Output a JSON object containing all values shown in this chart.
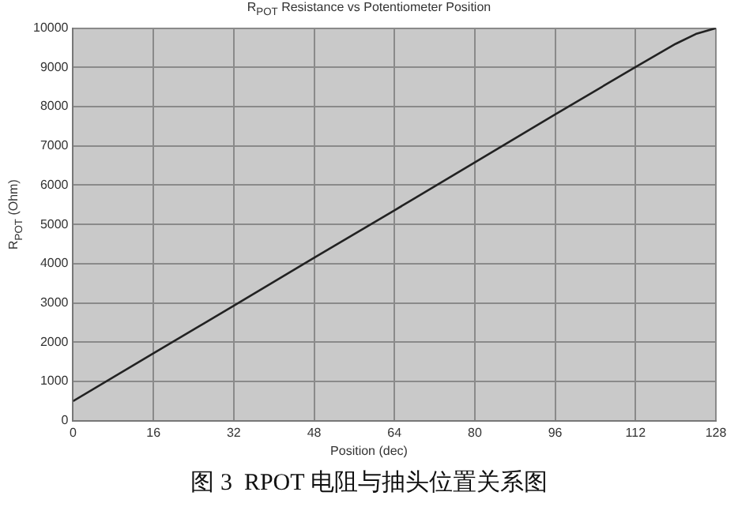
{
  "chart_data": {
    "type": "line",
    "title": "R$_{POT}$ Resistance vs Potentiometer Position",
    "xlabel": "Position (dec)",
    "ylabel": "R$_{POT}$ (Ohm)",
    "annotations": [
      "图 3  RPOT 电阻与抽头位置关系图"
    ],
    "x": [
      0,
      16,
      32,
      48,
      64,
      80,
      96,
      112,
      120,
      124,
      128
    ],
    "series": [
      {
        "color": "#222222",
        "values": [
          500,
          1720,
          2930,
          4150,
          5360,
          6580,
          7800,
          9010,
          9600,
          9850,
          10000
        ]
      }
    ],
    "xlim": [
      0,
      128
    ],
    "xticks": [
      0,
      16,
      32,
      48,
      64,
      80,
      96,
      112,
      128
    ],
    "ylim": [
      0,
      10000
    ],
    "yticks": [
      0,
      1000,
      2000,
      3000,
      4000,
      5000,
      6000,
      7000,
      8000,
      9000,
      10000
    ],
    "grid": true,
    "legend": false,
    "marker": "none",
    "line_style": "solid"
  }
}
